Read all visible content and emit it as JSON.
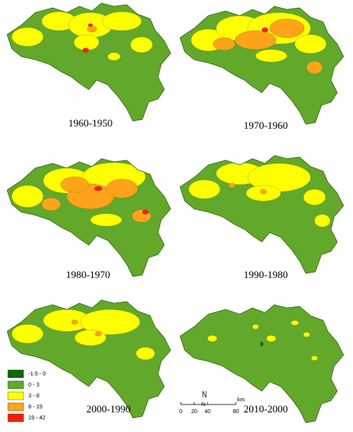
{
  "panels": [
    {
      "label": "1960-1950"
    },
    {
      "label": "1970-1960"
    },
    {
      "label": "1980-1970"
    },
    {
      "label": "1990-1980"
    },
    {
      "label": "2000-1990"
    },
    {
      "label": "2010-2000"
    }
  ],
  "legend": {
    "items": [
      {
        "label": "-1.5 - 0",
        "color": "#0a6a0a"
      },
      {
        "label": "0 - 3",
        "color": "#62a82a"
      },
      {
        "label": "3 - 8",
        "color": "#ffff00"
      },
      {
        "label": "8 - 19",
        "color": "#ffa31a"
      },
      {
        "label": "19 - 42",
        "color": "#ff1a00"
      }
    ]
  },
  "scale_bar": {
    "ticks": [
      "0",
      "20",
      "40",
      "80"
    ],
    "unit": "km",
    "north": "N"
  }
}
